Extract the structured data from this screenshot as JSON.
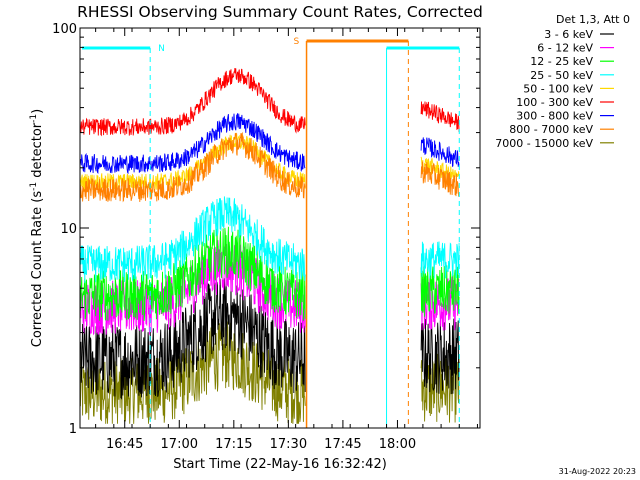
{
  "chart_data": {
    "type": "line",
    "title": "RHESSI Observing Summary Count Rates, Corrected",
    "xlabel": "Start Time (22-May-16 16:32:42)",
    "ylabel": "Corrected Count Rate (s",
    "ylabel_sup": "-1",
    "ylabel_mid": " detector",
    "ylabel_close": ")",
    "y_scale": "log",
    "ylim": [
      1,
      100
    ],
    "y_ticks": [
      {
        "value": 1,
        "label": "1"
      },
      {
        "value": 10,
        "label": "10"
      },
      {
        "value": 100,
        "label": "100"
      }
    ],
    "xlim_minutes": [
      0,
      110
    ],
    "x_ticks": [
      {
        "minutes": 12.3,
        "label": "16:45"
      },
      {
        "minutes": 27.3,
        "label": "17:00"
      },
      {
        "minutes": 42.3,
        "label": "17:15"
      },
      {
        "minutes": 57.3,
        "label": "17:30"
      },
      {
        "minutes": 72.3,
        "label": "17:45"
      },
      {
        "minutes": 87.3,
        "label": "18:00"
      }
    ],
    "legend_title": "Det 1,3, Att 0",
    "series": [
      {
        "name": "3 - 6 keV",
        "color": "#000000"
      },
      {
        "name": "6 - 12 keV",
        "color": "#ff00ff"
      },
      {
        "name": "12 - 25 keV",
        "color": "#00ff00"
      },
      {
        "name": "25 - 50 keV",
        "color": "#00ffff"
      },
      {
        "name": "50 - 100 keV",
        "color": "#ffd800"
      },
      {
        "name": "100 - 300 keV",
        "color": "#ff0000"
      },
      {
        "name": "300 - 800 keV",
        "color": "#0000ff"
      },
      {
        "name": "800 - 7000 keV",
        "color": "#ff8000"
      },
      {
        "name": "7000 - 15000 keV",
        "color": "#808000"
      }
    ],
    "annotations": [
      {
        "type": "night",
        "label": "N",
        "start_min": 0,
        "end_min": 19.3,
        "color": "#00ffff"
      },
      {
        "type": "saa",
        "label": "S",
        "start_min": 62.3,
        "end_min": 90.3,
        "color": "#ff8000"
      },
      {
        "type": "night-bar",
        "label": "",
        "start_min": 84.3,
        "end_min": 104.3,
        "color": "#00ffff"
      }
    ],
    "timestamp": "31-Aug-2022 20:23"
  }
}
